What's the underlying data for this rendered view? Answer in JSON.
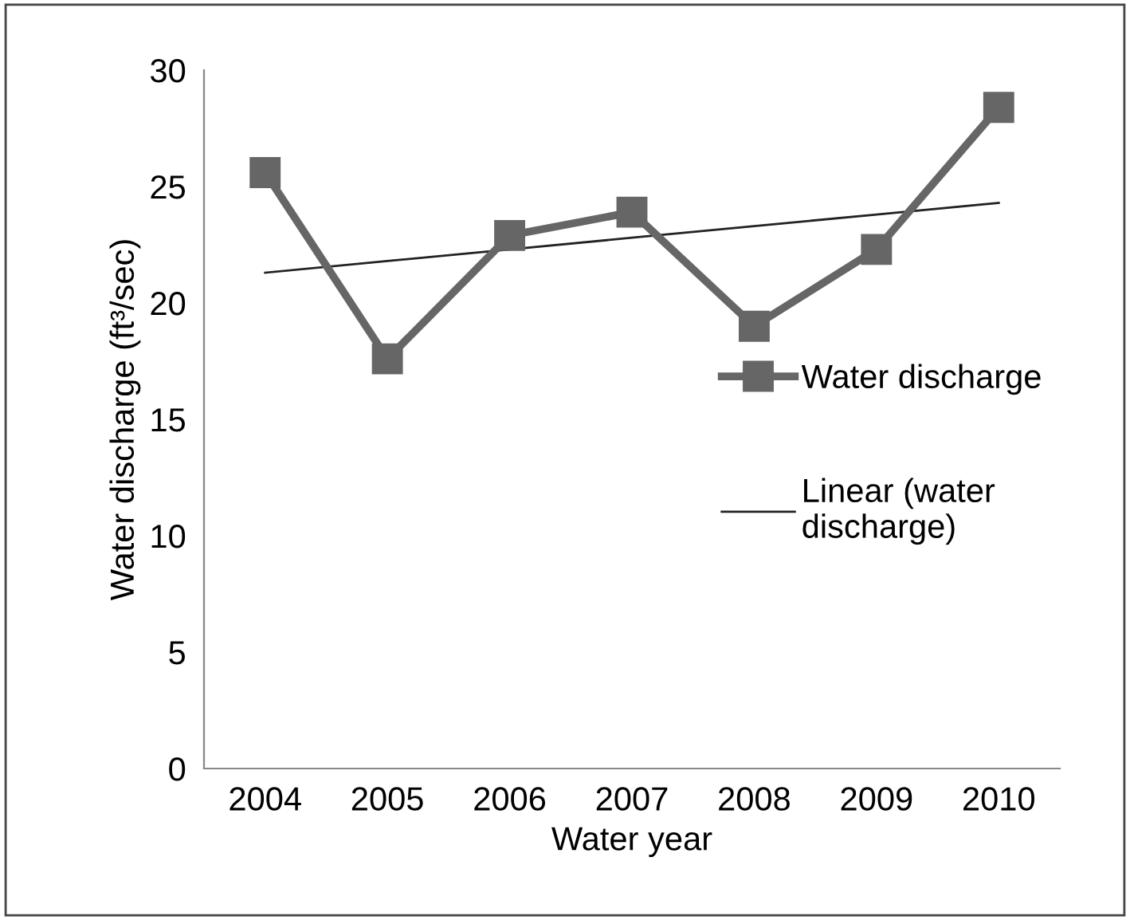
{
  "chart_data": {
    "type": "line",
    "xlabel": "Water year",
    "ylabel": "Water discharge (ft³/sec)",
    "categories": [
      "2004",
      "2005",
      "2006",
      "2007",
      "2008",
      "2009",
      "2010"
    ],
    "series": [
      {
        "name": "Water discharge",
        "color": "#666666",
        "values": [
          25.6,
          17.6,
          22.9,
          23.9,
          19.0,
          22.3,
          28.4
        ],
        "marker": "square",
        "line_style": "solid"
      },
      {
        "name": "Linear (water\ndischarge)",
        "color": "#222222",
        "values": [
          21.3,
          21.8,
          22.3,
          22.8,
          23.3,
          23.8,
          24.3
        ],
        "marker": "none",
        "line_style": "solid"
      }
    ],
    "ylim": [
      0,
      30
    ],
    "yticks": [
      0,
      5,
      10,
      15,
      20,
      25,
      30
    ],
    "grid": false,
    "legend": "right"
  }
}
